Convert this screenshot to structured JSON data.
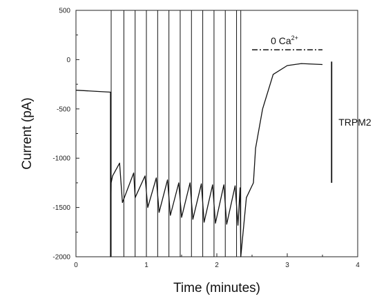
{
  "chart_data": {
    "type": "line",
    "title": "",
    "xlabel": "Time (minutes)",
    "ylabel": "Current (pA)",
    "xlim": [
      0,
      4
    ],
    "ylim": [
      -2000,
      500
    ],
    "x_ticks": [
      "0",
      "1",
      "2",
      "3",
      "4"
    ],
    "y_ticks": [
      "500",
      "0",
      "-500",
      "-1000",
      "-1500",
      "-2000"
    ],
    "grid": false,
    "legend": "none",
    "line_color": "#111111",
    "series": [
      {
        "x": [
          0,
          0.25,
          0.49,
          0.49,
          0.5,
          0.52,
          0.62,
          0.66,
          0.82,
          0.84,
          0.98,
          1.02,
          1.14,
          1.18,
          1.3,
          1.34,
          1.46,
          1.5,
          1.62,
          1.66,
          1.78,
          1.82,
          1.94,
          1.98,
          2.1,
          2.14,
          2.26,
          2.3,
          2.33,
          2.34,
          2.42,
          2.52,
          2.55,
          2.65,
          2.8,
          3.0,
          3.2,
          3.5
        ],
        "y": [
          -310,
          -320,
          -330,
          -2000,
          -1250,
          -1180,
          -1050,
          -1450,
          -1150,
          -1400,
          -1180,
          -1500,
          -1200,
          -1550,
          -1220,
          -1580,
          -1250,
          -1600,
          -1250,
          -1620,
          -1260,
          -1650,
          -1270,
          -1660,
          -1270,
          -1670,
          -1280,
          -1680,
          -1300,
          -2000,
          -1400,
          -1250,
          -900,
          -500,
          -150,
          -60,
          -40,
          -50
        ]
      }
    ],
    "spikes_x": [
      0.5,
      0.68,
      0.84,
      1.0,
      1.16,
      1.32,
      1.48,
      1.64,
      1.8,
      1.96,
      2.12,
      2.28,
      2.34
    ],
    "spike_top": 500,
    "annotations": {
      "zero_ca_label": "0 Ca",
      "zero_ca_superscript": "2+",
      "zero_ca_x": [
        2.5,
        3.5
      ],
      "zero_ca_y": 100,
      "scale_bar_label": "TRPM2",
      "scale_bar_x": 3.63,
      "scale_bar_y": [
        -20,
        -1250
      ]
    }
  }
}
